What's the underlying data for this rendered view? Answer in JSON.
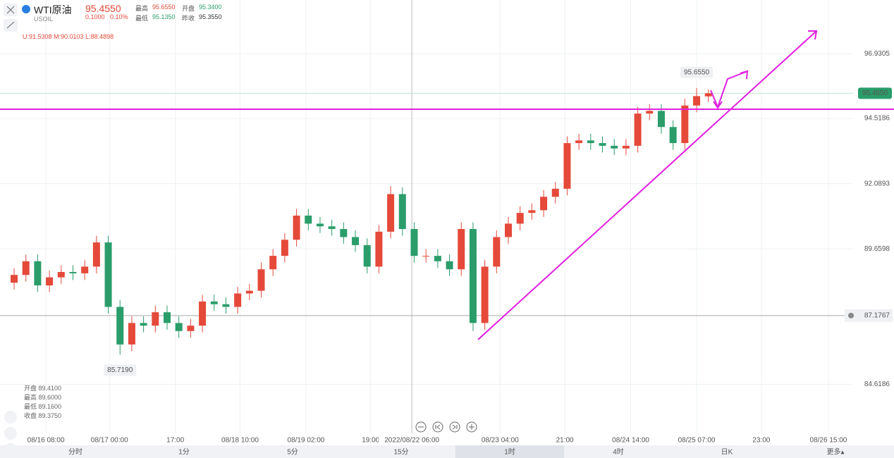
{
  "header": {
    "symbol": "WTI原油",
    "code": "USOIL",
    "price": "95.4550",
    "change": "0.1000",
    "change_pct": "0.10%",
    "stats": [
      [
        "最高",
        "95.6550"
      ],
      [
        "开盘",
        "95.3400"
      ],
      [
        "最低",
        "95.1350"
      ],
      [
        "昨收",
        "95.3550"
      ]
    ],
    "indicator": "U:91.5308  M:90.0103  L:88.4898"
  },
  "ohlc_info": [
    "开盘 89.4100",
    "最高 89.6000",
    "最低 89.1600",
    "收盘 89.3750"
  ],
  "tabs": [
    "分时",
    "1分",
    "5分",
    "15分",
    "1时",
    "4时",
    "日K",
    "更多▴"
  ],
  "active_tab": 4,
  "chart_data": {
    "type": "candlestick",
    "up_color": "#e5493a",
    "down_color": "#2a9d6a",
    "open": [
      88.4,
      88.69,
      89.2,
      88.3,
      88.6,
      88.8,
      88.75,
      89.0,
      89.9,
      87.5,
      86.1,
      86.9,
      86.8,
      87.3,
      86.9,
      86.6,
      86.8,
      87.7,
      87.6,
      87.5,
      88.0,
      88.1,
      88.9,
      89.4,
      90.0,
      90.9,
      90.6,
      90.5,
      90.4,
      90.1,
      89.8,
      89.0,
      90.3,
      91.7,
      90.4,
      89.4,
      89.4,
      89.2,
      88.9,
      90.4,
      86.9,
      89.0,
      90.1,
      90.6,
      91.0,
      91.1,
      91.6,
      91.9,
      93.6,
      93.7,
      93.6,
      93.5,
      93.4,
      93.5,
      94.7,
      94.8,
      94.2,
      93.6,
      95.0,
      95.34
    ],
    "high": [
      88.94,
      89.45,
      89.45,
      88.85,
      89.05,
      89.05,
      89.25,
      90.15,
      90.15,
      87.75,
      87.15,
      87.15,
      87.55,
      87.55,
      87.15,
      87.05,
      87.95,
      87.95,
      87.85,
      88.25,
      88.35,
      89.15,
      89.65,
      90.25,
      91.15,
      91.15,
      90.85,
      90.75,
      90.65,
      90.35,
      90.05,
      90.55,
      92.0,
      91.95,
      90.65,
      89.65,
      89.65,
      89.45,
      90.65,
      90.65,
      89.25,
      90.35,
      90.85,
      91.25,
      91.35,
      91.85,
      92.15,
      93.85,
      93.95,
      93.95,
      93.85,
      93.75,
      93.75,
      94.95,
      95.05,
      95.05,
      94.45,
      95.25,
      95.655,
      95.6
    ],
    "low": [
      88.15,
      88.44,
      88.05,
      88.05,
      88.35,
      88.5,
      88.5,
      88.75,
      87.25,
      85.719,
      85.85,
      86.55,
      86.55,
      86.65,
      86.35,
      86.35,
      86.55,
      87.35,
      87.25,
      87.25,
      87.75,
      87.85,
      88.65,
      89.15,
      89.75,
      90.35,
      90.25,
      90.15,
      89.85,
      89.55,
      88.75,
      88.75,
      90.05,
      90.15,
      89.15,
      89.15,
      88.95,
      88.65,
      88.65,
      86.6,
      86.65,
      88.75,
      89.85,
      90.35,
      90.75,
      90.85,
      91.35,
      91.65,
      93.35,
      93.35,
      93.25,
      93.15,
      93.15,
      93.25,
      94.45,
      93.95,
      93.35,
      93.35,
      94.75,
      95.135
    ],
    "close": [
      88.69,
      89.2,
      88.3,
      88.6,
      88.8,
      88.75,
      89.0,
      89.9,
      87.5,
      86.1,
      86.9,
      86.8,
      87.3,
      86.9,
      86.6,
      86.8,
      87.7,
      87.6,
      87.5,
      88.0,
      88.1,
      88.9,
      89.4,
      90.0,
      90.9,
      90.6,
      90.5,
      90.4,
      90.1,
      89.8,
      89.0,
      90.3,
      91.7,
      90.4,
      89.4,
      89.4,
      89.2,
      88.9,
      90.4,
      86.9,
      89.0,
      90.1,
      90.6,
      91.0,
      91.1,
      91.6,
      91.9,
      93.6,
      93.7,
      93.6,
      93.5,
      93.4,
      93.5,
      94.7,
      94.8,
      94.2,
      93.6,
      95.0,
      95.35,
      95.455
    ],
    "xlim": [
      -1.2,
      71.3
    ],
    "ylim": [
      82.79,
      98.93
    ],
    "yticks": [
      84.6186,
      89.6598,
      92.0893,
      94.5186,
      96.9305
    ],
    "xticks": [
      {
        "value": 2.7,
        "label": "08/16 08:00"
      },
      {
        "value": 8.1,
        "label": "08/17 00:00"
      },
      {
        "value": 13.7,
        "label": "17:00"
      },
      {
        "value": 19.2,
        "label": "08/18 10:00"
      },
      {
        "value": 24.8,
        "label": "08/19 02:00"
      },
      {
        "value": 30.3,
        "label": "19:00"
      },
      {
        "value": 41.3,
        "label": "08/23 04:00"
      },
      {
        "value": 46.8,
        "label": "21:00"
      },
      {
        "value": 52.4,
        "label": "08/24 14:00"
      },
      {
        "value": 58.0,
        "label": "08/25 07:00"
      },
      {
        "value": 63.5,
        "label": "23:00"
      },
      {
        "value": 69.2,
        "label": "08/26 15:00"
      }
    ],
    "grid": true,
    "crosshair": {
      "x": 33.8,
      "label": "2022/08/22 06:00"
    },
    "last_price": {
      "value": 95.455,
      "label": "95.4550"
    },
    "alert_price": 87.1767,
    "annotations": [
      {
        "x": 58,
        "value": 95.655,
        "label": "95.6550",
        "side": "above"
      },
      {
        "x": 9,
        "value": 85.719,
        "label": "85.7190",
        "side": "below"
      }
    ]
  }
}
